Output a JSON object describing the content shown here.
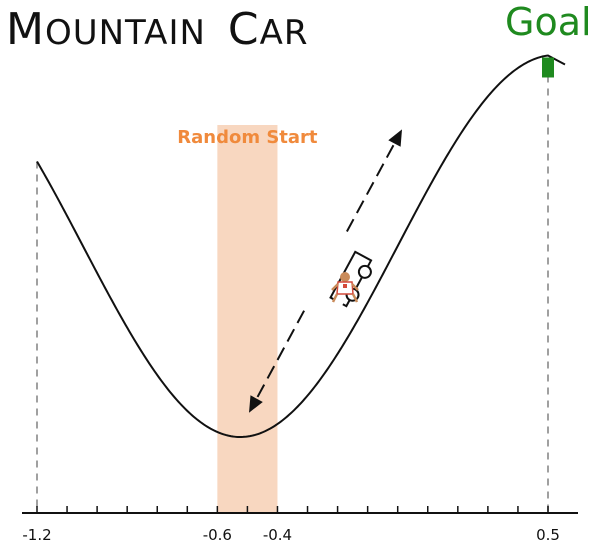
{
  "title": {
    "word1_initial": "M",
    "word1_rest": "OUNTAIN",
    "word2_initial": "C",
    "word2_rest": "AR"
  },
  "goal": {
    "label": "Goal",
    "color": "#1f8a1f"
  },
  "random_start": {
    "label": "Random Start",
    "label_color": "#f08a3c",
    "band_color": "#f8d7c0",
    "range": [
      -0.6,
      -0.4
    ]
  },
  "axis": {
    "min": -1.2,
    "max": 0.5,
    "tick_labels": [
      {
        "value": -1.2,
        "text": "-1.2"
      },
      {
        "value": -0.6,
        "text": "-0.6"
      },
      {
        "value": -0.4,
        "text": "-0.4"
      },
      {
        "value": 0.5,
        "text": "0.5"
      }
    ],
    "minor_tick_values": [
      -1.2,
      -1.1,
      -1.0,
      -0.9,
      -0.8,
      -0.7,
      -0.6,
      -0.5,
      -0.4,
      -0.3,
      -0.2,
      -0.1,
      0.0,
      0.1,
      0.2,
      0.3,
      0.4,
      0.5
    ]
  },
  "curve": {
    "function": "sin(3x)",
    "color": "#111111"
  },
  "car": {
    "position": -0.08,
    "icon": "cart-icon"
  },
  "rider": {
    "icon": "person-icon"
  },
  "arrows": {
    "up_icon": "arrow-up-right-icon",
    "down_icon": "arrow-down-left-icon"
  }
}
